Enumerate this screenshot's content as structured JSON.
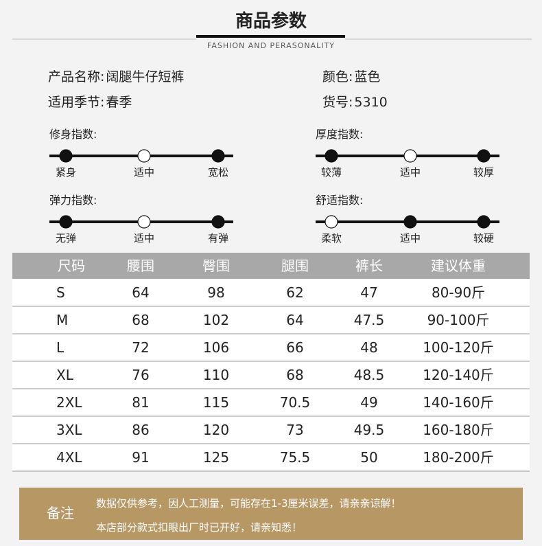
{
  "header": {
    "title": "商品参数",
    "subtitle": "FASHION AND PERASONALITY"
  },
  "info": [
    {
      "label": "产品名称:",
      "value": "阔腿牛仔短裤"
    },
    {
      "label": "颜色:",
      "value": "蓝色"
    },
    {
      "label": "适用季节:",
      "value": "春季"
    },
    {
      "label": "货号:",
      "value": "5310"
    }
  ],
  "scales": [
    {
      "title": "修身指数:",
      "labels": [
        "紧身",
        "适中",
        "宽松"
      ]
    },
    {
      "title": "厚度指数:",
      "labels": [
        "较薄",
        "适中",
        "较厚"
      ]
    },
    {
      "title": "弹力指数:",
      "labels": [
        "无弹",
        "适中",
        "有弹"
      ]
    },
    {
      "title": "舒适指数:",
      "labels": [
        "柔软",
        "适中",
        "较硬"
      ]
    }
  ],
  "table": {
    "header": [
      "尺码",
      "腰围",
      "臀围",
      "腿围",
      "裤长",
      "建议体重"
    ],
    "rows": [
      [
        "S",
        "64",
        "98",
        "62",
        "47",
        "80-90斤"
      ],
      [
        "M",
        "68",
        "102",
        "64",
        "47.5",
        "90-100斤"
      ],
      [
        "L",
        "72",
        "106",
        "66",
        "48",
        "100-120斤"
      ],
      [
        "XL",
        "76",
        "110",
        "68",
        "48.5",
        "120-140斤"
      ],
      [
        "2XL",
        "81",
        "115",
        "70.5",
        "49",
        "140-160斤"
      ],
      [
        "3XL",
        "86",
        "120",
        "73",
        "49.5",
        "160-180斤"
      ],
      [
        "4XL",
        "91",
        "125",
        "75.5",
        "50",
        "180-200斤"
      ]
    ]
  },
  "note": {
    "label": "备注",
    "lines": [
      "数据仅供参考，因人工测量，可能存在1-3厘米误差，请亲亲谅解！",
      "本店部分款式扣眼出厂时已开好，请亲知悉！"
    ]
  }
}
